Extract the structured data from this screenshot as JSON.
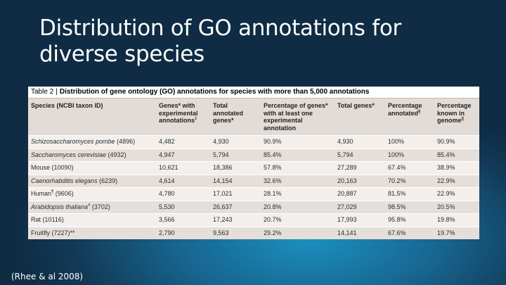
{
  "slide": {
    "title_line1": "Distribution of GO annotations for",
    "title_line2": "diverse species",
    "citation": "(Rhee & al 2008)"
  },
  "table": {
    "caption_number": "Table 2",
    "caption_title": "Distribution of gene ontology (GO) annotations for species with more than 5,000 annotations",
    "headers": [
      {
        "text": "Species (NCBI taxon ID)",
        "sup": ""
      },
      {
        "text": "Genes* with experimental annotations",
        "sup": "‡"
      },
      {
        "text": "Total annotated genes*",
        "sup": ""
      },
      {
        "text": "Percentage of genes* with at least one experimental annotation",
        "sup": ""
      },
      {
        "text": "Total genes*",
        "sup": ""
      },
      {
        "text": "Percentage annotated",
        "sup": "§"
      },
      {
        "text": "Percentage known in genome",
        "sup": "||"
      }
    ],
    "rows": [
      {
        "species": "Schizosaccharomyces pombe",
        "taxon": " (4896)",
        "italic": true,
        "sup": "",
        "cells": [
          "4,482",
          "4,930",
          "90.9%",
          "4,930",
          "100%",
          "90.9%"
        ]
      },
      {
        "species": "Saccharomyces cerevisiae",
        "taxon": " (4932)",
        "italic": true,
        "sup": "",
        "cells": [
          "4,947",
          "5,794",
          "85.4%",
          "5,794",
          "100%",
          "85.4%"
        ]
      },
      {
        "species": "Mouse",
        "taxon": " (10090)",
        "italic": false,
        "sup": "",
        "cells": [
          "10,621",
          "18,386",
          "57.8%",
          "27,289",
          "67.4%",
          "38.9%"
        ]
      },
      {
        "species": "Caenorhabditis elegans",
        "taxon": " (6239)",
        "italic": true,
        "sup": "",
        "cells": [
          "4,614",
          "14,154",
          "32.6%",
          "20,163",
          "70.2%",
          "22.9%"
        ]
      },
      {
        "species": "Human",
        "taxon": " (9606)",
        "italic": false,
        "sup": "¶",
        "cells": [
          "4,780",
          "17,021",
          "28.1%",
          "20,887",
          "81.5%",
          "22.9%"
        ]
      },
      {
        "species": "Arabidopsis thaliana",
        "taxon": " (3702)",
        "italic": true,
        "sup": "#",
        "cells": [
          "5,530",
          "26,637",
          "20.8%",
          "27,029",
          "98.5%",
          "20.5%"
        ]
      },
      {
        "species": "Rat",
        "taxon": " (10116)",
        "italic": false,
        "sup": "",
        "cells": [
          "3,566",
          "17,243",
          "20.7%",
          "17,993",
          "95.8%",
          "19.8%"
        ]
      },
      {
        "species": "Fruitfly",
        "taxon": " (7227)**",
        "italic": false,
        "sup": "",
        "cells": [
          "2,790",
          "9,563",
          "29.2%",
          "14,141",
          "67.6%",
          "19.7%"
        ]
      }
    ]
  }
}
